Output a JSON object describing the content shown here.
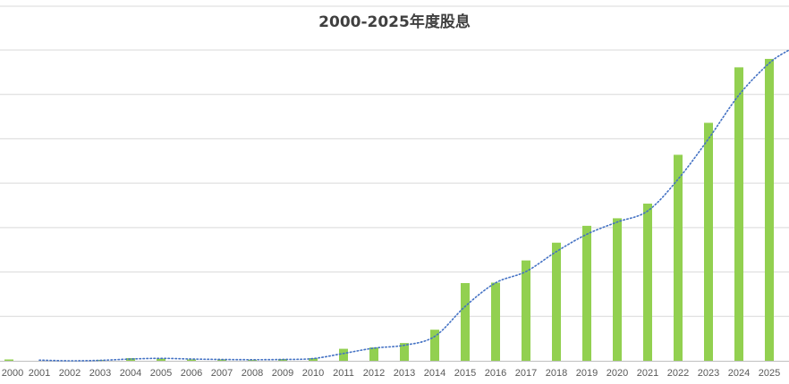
{
  "chart_data": {
    "type": "bar",
    "title": "2000-2025年度股息",
    "categories": [
      "2000",
      "2001",
      "2002",
      "2003",
      "2004",
      "2005",
      "2006",
      "2007",
      "2008",
      "2009",
      "2010",
      "2011",
      "2012",
      "2013",
      "2014",
      "2015",
      "2016",
      "2017",
      "2018",
      "2019",
      "2020",
      "2021",
      "2022",
      "2023",
      "2024",
      "2025"
    ],
    "values": [
      0.3,
      0,
      0,
      0.2,
      0.6,
      0.5,
      0.3,
      0.3,
      0.2,
      0.4,
      0.6,
      2.7,
      3.0,
      4.0,
      7.0,
      17.5,
      17.6,
      22.6,
      26.6,
      30.4,
      32.1,
      35.4,
      46.4,
      53.6,
      66.1,
      68.0
    ],
    "trendline": {
      "style": "dotted",
      "color": "#4472C4"
    },
    "ylim": [
      0,
      70
    ],
    "grid": true,
    "colors": {
      "bar": "#92D050",
      "grid": "#D9D9D9",
      "axis": "#BFBFBF"
    }
  }
}
